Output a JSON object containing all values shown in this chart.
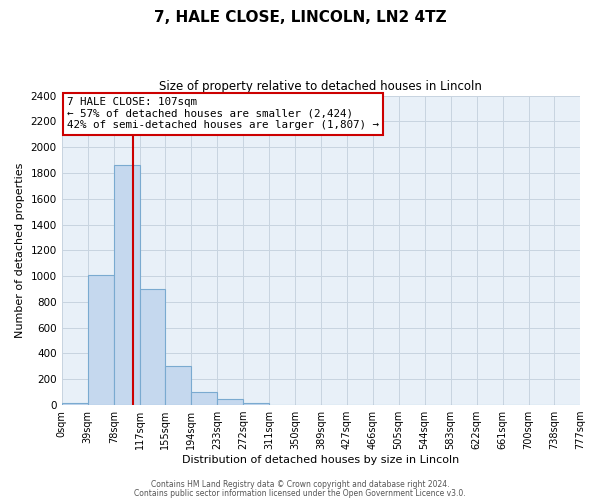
{
  "title": "7, HALE CLOSE, LINCOLN, LN2 4TZ",
  "subtitle": "Size of property relative to detached houses in Lincoln",
  "xlabel": "Distribution of detached houses by size in Lincoln",
  "ylabel": "Number of detached properties",
  "bar_edges": [
    0,
    39,
    78,
    117,
    155,
    194,
    233,
    272,
    311,
    350,
    389,
    427,
    466,
    505,
    544,
    583,
    622,
    661,
    700,
    738,
    777
  ],
  "bar_heights": [
    20,
    1010,
    1865,
    900,
    300,
    100,
    45,
    20,
    0,
    0,
    0,
    0,
    0,
    0,
    0,
    0,
    0,
    0,
    0,
    0
  ],
  "bar_color": "#c5d8ee",
  "bar_edgecolor": "#7aaad0",
  "plot_bg_color": "#e8f0f8",
  "property_line_x": 107,
  "property_line_color": "#cc0000",
  "annotation_line1": "7 HALE CLOSE: 107sqm",
  "annotation_line2": "← 57% of detached houses are smaller (2,424)",
  "annotation_line3": "42% of semi-detached houses are larger (1,807) →",
  "annotation_box_color": "#ffffff",
  "annotation_box_edgecolor": "#cc0000",
  "ylim": [
    0,
    2400
  ],
  "yticks": [
    0,
    200,
    400,
    600,
    800,
    1000,
    1200,
    1400,
    1600,
    1800,
    2000,
    2200,
    2400
  ],
  "tick_labels": [
    "0sqm",
    "39sqm",
    "78sqm",
    "117sqm",
    "155sqm",
    "194sqm",
    "233sqm",
    "272sqm",
    "311sqm",
    "350sqm",
    "389sqm",
    "427sqm",
    "466sqm",
    "505sqm",
    "544sqm",
    "583sqm",
    "622sqm",
    "661sqm",
    "700sqm",
    "738sqm",
    "777sqm"
  ],
  "footer_line1": "Contains HM Land Registry data © Crown copyright and database right 2024.",
  "footer_line2": "Contains public sector information licensed under the Open Government Licence v3.0.",
  "background_color": "#ffffff",
  "grid_color": "#c8d4e0"
}
